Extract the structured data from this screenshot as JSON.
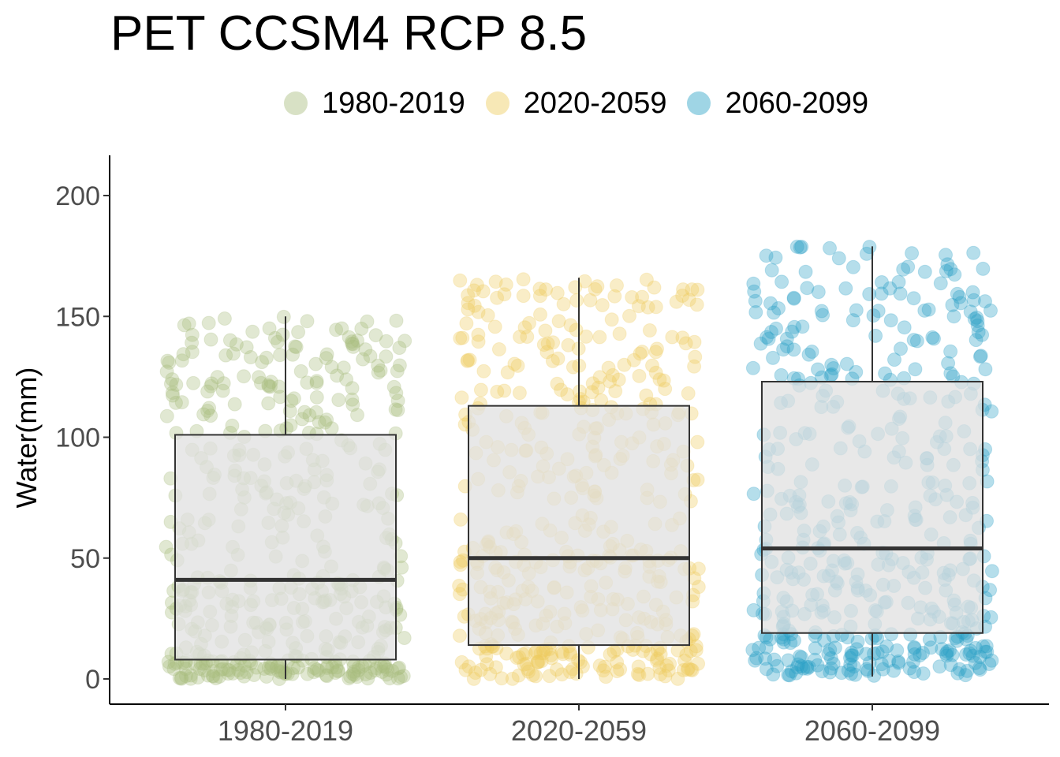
{
  "chart_data": {
    "type": "box",
    "title": "PET CCSM4 RCP 8.5",
    "xlabel": "",
    "ylabel": "Water(mm)",
    "ylim": [
      -10,
      217
    ],
    "yticks": [
      0,
      50,
      100,
      150,
      200
    ],
    "categories": [
      "1980-2019",
      "2020-2059",
      "2060-2099"
    ],
    "legend": {
      "position": "top",
      "entries": [
        "1980-2019",
        "2020-2059",
        "2060-2099"
      ]
    },
    "colors": {
      "1980-2019": "#a9bc7e",
      "2020-2059": "#eecb5e",
      "2060-2099": "#2aa1c6",
      "box_fill": "#e0e0e0",
      "box_line": "#333333"
    },
    "boxes": [
      {
        "name": "1980-2019",
        "whisker_low": 0,
        "q1": 8,
        "median": 41,
        "q3": 101,
        "whisker_high": 150
      },
      {
        "name": "2020-2059",
        "whisker_low": 0,
        "q1": 14,
        "median": 50,
        "q3": 113,
        "whisker_high": 166
      },
      {
        "name": "2060-2099",
        "whisker_low": 1,
        "q1": 19,
        "median": 54,
        "q3": 123,
        "whisker_high": 179
      }
    ],
    "grid": false,
    "points_alpha": 0.35
  }
}
